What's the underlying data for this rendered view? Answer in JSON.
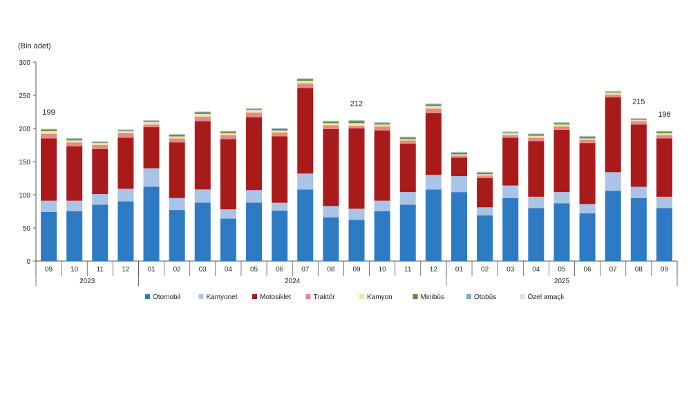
{
  "chart_data": {
    "type": "bar",
    "stacked": true,
    "ylabel": "(Bin adet)",
    "ylim": [
      0,
      300
    ],
    "yticks": [
      0,
      50,
      100,
      150,
      200,
      250,
      300
    ],
    "grid": false,
    "legend_position": "bottom",
    "categories": [
      "09",
      "10",
      "11",
      "12",
      "01",
      "02",
      "03",
      "04",
      "05",
      "06",
      "07",
      "08",
      "09",
      "10",
      "11",
      "12",
      "01",
      "02",
      "03",
      "04",
      "05",
      "06",
      "07",
      "08",
      "09"
    ],
    "year_groups": [
      {
        "label": "2023",
        "start": 0,
        "end": 3
      },
      {
        "label": "2024",
        "start": 4,
        "end": 15
      },
      {
        "label": "2025",
        "start": 16,
        "end": 24
      }
    ],
    "annotations": [
      {
        "index": 0,
        "text": "199"
      },
      {
        "index": 12,
        "text": "212"
      },
      {
        "index": 23,
        "text": "215"
      },
      {
        "index": 24,
        "text": "196"
      }
    ],
    "series": [
      {
        "name": "Otomobil",
        "color": "#2e7bc4",
        "values": [
          74,
          75,
          85,
          90,
          112,
          77,
          88,
          64,
          88,
          76,
          108,
          66,
          62,
          75,
          85,
          108,
          104,
          69,
          95,
          80,
          87,
          72,
          106,
          95,
          80
        ]
      },
      {
        "name": "Kamyonet",
        "color": "#a9c4e6",
        "values": [
          17,
          16,
          16,
          19,
          28,
          18,
          20,
          14,
          19,
          12,
          24,
          17,
          17,
          16,
          19,
          22,
          24,
          12,
          19,
          17,
          17,
          14,
          28,
          17,
          17
        ]
      },
      {
        "name": "Motosiklet",
        "color": "#a91b1b",
        "values": [
          94,
          82,
          68,
          77,
          62,
          84,
          103,
          106,
          110,
          100,
          129,
          116,
          121,
          106,
          73,
          93,
          28,
          44,
          72,
          84,
          94,
          92,
          113,
          94,
          88
        ]
      },
      {
        "name": "Traktör",
        "color": "#e58a8a",
        "values": [
          7,
          6,
          6,
          7,
          4,
          6,
          7,
          6,
          7,
          6,
          7,
          6,
          4,
          6,
          5,
          7,
          3,
          4,
          4,
          5,
          5,
          5,
          4,
          5,
          5
        ]
      },
      {
        "name": "Kamyon",
        "color": "#f2e4a5",
        "values": [
          4,
          3,
          3,
          3,
          4,
          3,
          4,
          3,
          4,
          3,
          4,
          3,
          4,
          3,
          2,
          4,
          2,
          2,
          3,
          3,
          3,
          2,
          3,
          2,
          3
        ]
      },
      {
        "name": "Minibüs",
        "color": "#5e8a3c",
        "values": [
          2,
          2,
          1,
          1,
          1,
          2,
          2,
          2,
          1,
          2,
          2,
          2,
          3,
          2,
          2,
          2,
          2,
          2,
          1,
          2,
          2,
          2,
          1,
          1,
          2
        ]
      },
      {
        "name": "Otobüs",
        "color": "#7fa9c9",
        "values": [
          1,
          1,
          1,
          1,
          1,
          1,
          1,
          1,
          1,
          1,
          1,
          1,
          1,
          1,
          1,
          1,
          1,
          1,
          1,
          1,
          1,
          1,
          1,
          1,
          1
        ]
      },
      {
        "name": "Özel amaçlı",
        "color": "#dcdcdc",
        "values": [
          1,
          1,
          1,
          1,
          1,
          1,
          1,
          1,
          1,
          1,
          1,
          1,
          1,
          1,
          1,
          1,
          1,
          1,
          1,
          1,
          1,
          1,
          1,
          1,
          1
        ]
      }
    ]
  }
}
